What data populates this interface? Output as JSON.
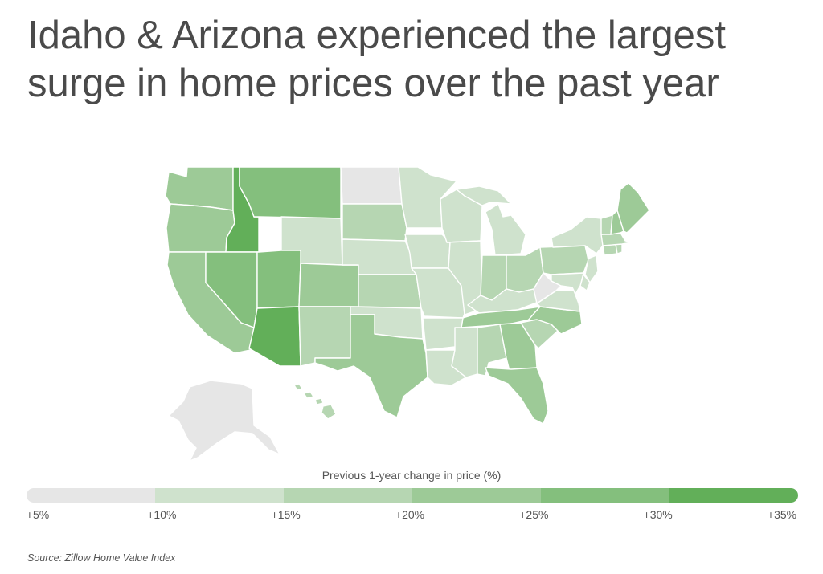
{
  "title": {
    "line1": "Idaho & Arizona experienced the largest",
    "line2": "surge in home prices over the past year"
  },
  "legend": {
    "title": "Previous 1-year change in price (%)",
    "labels": [
      "+5%",
      "+10%",
      "+15%",
      "+20%",
      "+25%",
      "+30%",
      "+35%"
    ],
    "colors": [
      "#e6e6e6",
      "#cfe2cd",
      "#b6d6b2",
      "#9dca97",
      "#84bf7d",
      "#62af59"
    ]
  },
  "source": "Source:  Zillow Home Value Index",
  "map_data": {
    "metric": "Previous 1-year change in price (%)",
    "bins": [
      {
        "range": "+5% to +10%",
        "states": [
          "ND",
          "WV",
          "AK"
        ]
      },
      {
        "range": "+10% to +15%",
        "states": [
          "WY",
          "MN",
          "IA",
          "NE",
          "IL",
          "MO",
          "KY",
          "LA",
          "MS",
          "OK",
          "AR",
          "MI",
          "WI",
          "NY",
          "VA",
          "MD",
          "DE",
          "NJ"
        ]
      },
      {
        "range": "+15% to +20%",
        "states": [
          "SD",
          "KS",
          "IN",
          "OH",
          "PA",
          "AL",
          "SC",
          "NM",
          "CT",
          "MA",
          "VT",
          "RI",
          "HI"
        ]
      },
      {
        "range": "+20% to +25%",
        "states": [
          "WA",
          "OR",
          "CA",
          "CO",
          "TX",
          "GA",
          "TN",
          "NC",
          "FL",
          "ME",
          "NH"
        ]
      },
      {
        "range": "+25% to +30%",
        "states": [
          "NV",
          "UT",
          "MT"
        ]
      },
      {
        "range": "+30% to +35%",
        "states": [
          "ID",
          "AZ"
        ]
      }
    ]
  }
}
